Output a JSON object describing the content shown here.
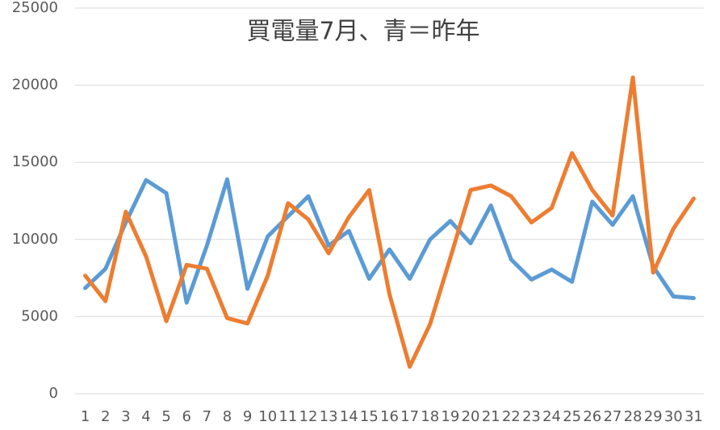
{
  "chart_data": {
    "type": "line",
    "title": "買電量7月、青＝昨年",
    "categories": [
      "1",
      "2",
      "3",
      "4",
      "5",
      "6",
      "7",
      "8",
      "9",
      "10",
      "11",
      "12",
      "13",
      "14",
      "15",
      "16",
      "17",
      "18",
      "19",
      "20",
      "21",
      "22",
      "23",
      "24",
      "25",
      "26",
      "27",
      "28",
      "29",
      "30",
      "31"
    ],
    "series": [
      {
        "color": "#5b9bd5",
        "values": [
          6850,
          8100,
          11100,
          13850,
          13000,
          5900,
          9600,
          13900,
          6800,
          10200,
          11500,
          12800,
          9600,
          10550,
          7450,
          9350,
          7450,
          10000,
          11200,
          9750,
          12200,
          8700,
          7400,
          8050,
          7250,
          12450,
          10950,
          12800,
          8250,
          6300,
          6200
        ]
      },
      {
        "color": "#ed7d31",
        "values": [
          7650,
          6000,
          11800,
          8900,
          4700,
          8350,
          8100,
          4900,
          4550,
          7650,
          12350,
          11300,
          9100,
          11450,
          13200,
          6450,
          1750,
          4500,
          8800,
          13200,
          13500,
          12800,
          11100,
          12050,
          15600,
          13200,
          11550,
          20500,
          7850,
          10700,
          12650
        ]
      }
    ],
    "ylim": [
      0,
      25000
    ],
    "yticks": [
      0,
      5000,
      10000,
      15000,
      20000,
      25000
    ],
    "grid": true
  }
}
